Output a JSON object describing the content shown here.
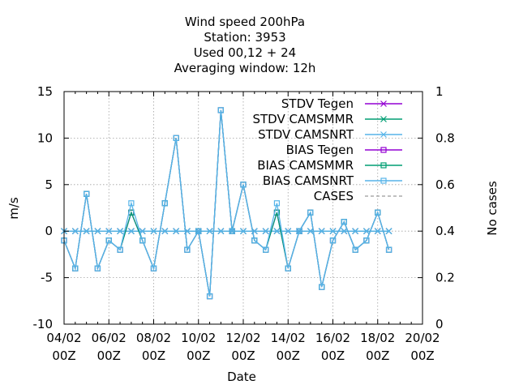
{
  "chart_data": {
    "type": "line",
    "title_lines": [
      "Wind speed 200hPa",
      "Station:     3953",
      "Used  00,12  + 24",
      "Averaging window: 12h"
    ],
    "xlabel": "Date",
    "ylabel": "m/s",
    "y2label": "No cases",
    "ylim": [
      -10,
      15
    ],
    "y2lim": [
      0,
      1
    ],
    "yticks": [
      "15",
      "10",
      "5",
      "0",
      "-5",
      "-10"
    ],
    "y2ticks": [
      "1",
      "0.8",
      "0.6",
      "0.4",
      "0.2",
      "0"
    ],
    "xticks": [
      {
        "date": "04/02",
        "hour": "00Z"
      },
      {
        "date": "06/02",
        "hour": "00Z"
      },
      {
        "date": "08/02",
        "hour": "00Z"
      },
      {
        "date": "10/02",
        "hour": "00Z"
      },
      {
        "date": "12/02",
        "hour": "00Z"
      },
      {
        "date": "14/02",
        "hour": "00Z"
      },
      {
        "date": "16/02",
        "hour": "00Z"
      },
      {
        "date": "18/02",
        "hour": "00Z"
      },
      {
        "date": "20/02",
        "hour": "00Z"
      }
    ],
    "x_dates_days": [
      4.0,
      4.5,
      5.0,
      5.5,
      6.0,
      6.5,
      7.0,
      7.5,
      8.0,
      8.5,
      9.0,
      9.5,
      10.0,
      10.5,
      11.0,
      11.5,
      12.0,
      12.5,
      13.0,
      13.5,
      14.0,
      14.5,
      15.0,
      15.5,
      16.0,
      16.5,
      17.0,
      17.5,
      18.0,
      18.5
    ],
    "grid": true,
    "legend_position": "top-right",
    "series": [
      {
        "name": "STDV Tegen",
        "color": "#9400d3",
        "marker": "x",
        "axis": "y1",
        "values": [
          0,
          0,
          0,
          0,
          0,
          0,
          0,
          0,
          0,
          0,
          0,
          0,
          0,
          0,
          0,
          0,
          0,
          0,
          0,
          0,
          0,
          0,
          0,
          0,
          0,
          0,
          0,
          0,
          0,
          0
        ]
      },
      {
        "name": "STDV CAMSMMR",
        "color": "#009e73",
        "marker": "x",
        "axis": "y1",
        "values": [
          0,
          0,
          0,
          0,
          0,
          0,
          0,
          0,
          0,
          0,
          0,
          0,
          0,
          0,
          0,
          0,
          0,
          0,
          0,
          0,
          0,
          0,
          0,
          0,
          0,
          0,
          0,
          0,
          0,
          0
        ]
      },
      {
        "name": "STDV CAMSNRT",
        "color": "#56b4e9",
        "marker": "x",
        "axis": "y1",
        "values": [
          0,
          0,
          0,
          0,
          0,
          0,
          0,
          0,
          0,
          0,
          0,
          0,
          0,
          0,
          0,
          0,
          0,
          0,
          0,
          0,
          0,
          0,
          0,
          0,
          0,
          0,
          0,
          0,
          0,
          0
        ]
      },
      {
        "name": "BIAS Tegen",
        "color": "#9400d3",
        "marker": "square",
        "axis": "y1",
        "values": [
          -1,
          -4,
          4,
          -4,
          -1,
          -2,
          2,
          -1,
          -4,
          3,
          10,
          -2,
          0,
          -7,
          13,
          0,
          5,
          -1,
          -2,
          2,
          -4,
          0,
          2,
          -6,
          -1,
          1,
          -2,
          -1,
          2,
          -2
        ]
      },
      {
        "name": "BIAS CAMSMMR",
        "color": "#009e73",
        "marker": "square",
        "axis": "y1",
        "values": [
          -1,
          -4,
          4,
          -4,
          -1,
          -2,
          2,
          -1,
          -4,
          3,
          10,
          -2,
          0,
          -7,
          13,
          0,
          5,
          -1,
          -2,
          2,
          -4,
          0,
          2,
          -6,
          -1,
          1,
          -2,
          -1,
          2,
          -2
        ]
      },
      {
        "name": "BIAS CAMSNRT",
        "color": "#56b4e9",
        "marker": "square",
        "axis": "y1",
        "values": [
          -1,
          -4,
          4,
          -4,
          -1,
          -2,
          3,
          -1,
          -4,
          3,
          10,
          -2,
          0,
          -7,
          13,
          0,
          5,
          -1,
          -2,
          3,
          -4,
          0,
          2,
          -6,
          -1,
          1,
          -2,
          -1,
          2,
          -2
        ]
      },
      {
        "name": "CASES",
        "color": "#808080",
        "marker": "none",
        "dash": true,
        "axis": "y2",
        "values": []
      }
    ]
  }
}
